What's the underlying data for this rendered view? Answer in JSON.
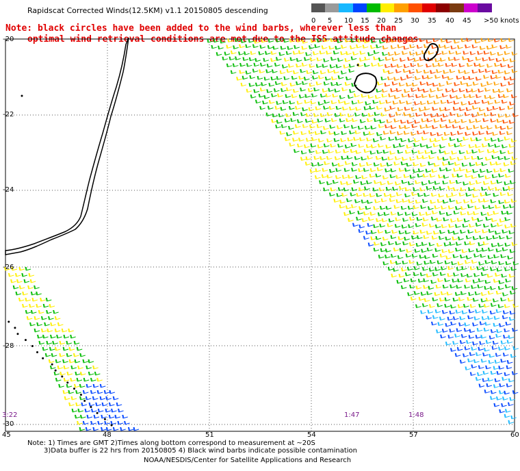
{
  "title": "Rapidscat Corrected Winds(12.5KM) v1.1 20150805 descending",
  "note": {
    "line1": "Note: black circles have been added to the wind barbs, wherever less than",
    "line2": "optimal wind retrieval conditions are met due to the ISS attitude changes."
  },
  "scale": {
    "labels": [
      "0",
      "5",
      "10",
      "15",
      "20",
      "25",
      "30",
      "35",
      "40",
      "45",
      ">50 knots"
    ],
    "colors": [
      "#555555",
      "#9a9a9a",
      "#18b8ff",
      "#0044ff",
      "#00bb00",
      "#ffee00",
      "#ffa000",
      "#ff5000",
      "#e00000",
      "#8b0000",
      "#7a3a10",
      "#cc00cc",
      "#6a0aa0"
    ]
  },
  "axes": {
    "lat_labels": [
      "-20",
      "-22",
      "-24",
      "-26",
      "-28",
      "-30"
    ],
    "lon_labels": [
      "45",
      "48",
      "51",
      "54",
      "57",
      "60"
    ]
  },
  "times": [
    "3:22",
    "1:47",
    "1:48"
  ],
  "footer": {
    "line1": "Note: 1) Times are GMT 2)Times along bottom correspond to measurement at ~20S",
    "line2": "3)Data buffer is 22 hrs from 20150805 4) Black wind barbs indicate possible contamination",
    "line3": "NOAA/NESDIS/Center for Satellite Applications and Research"
  }
}
